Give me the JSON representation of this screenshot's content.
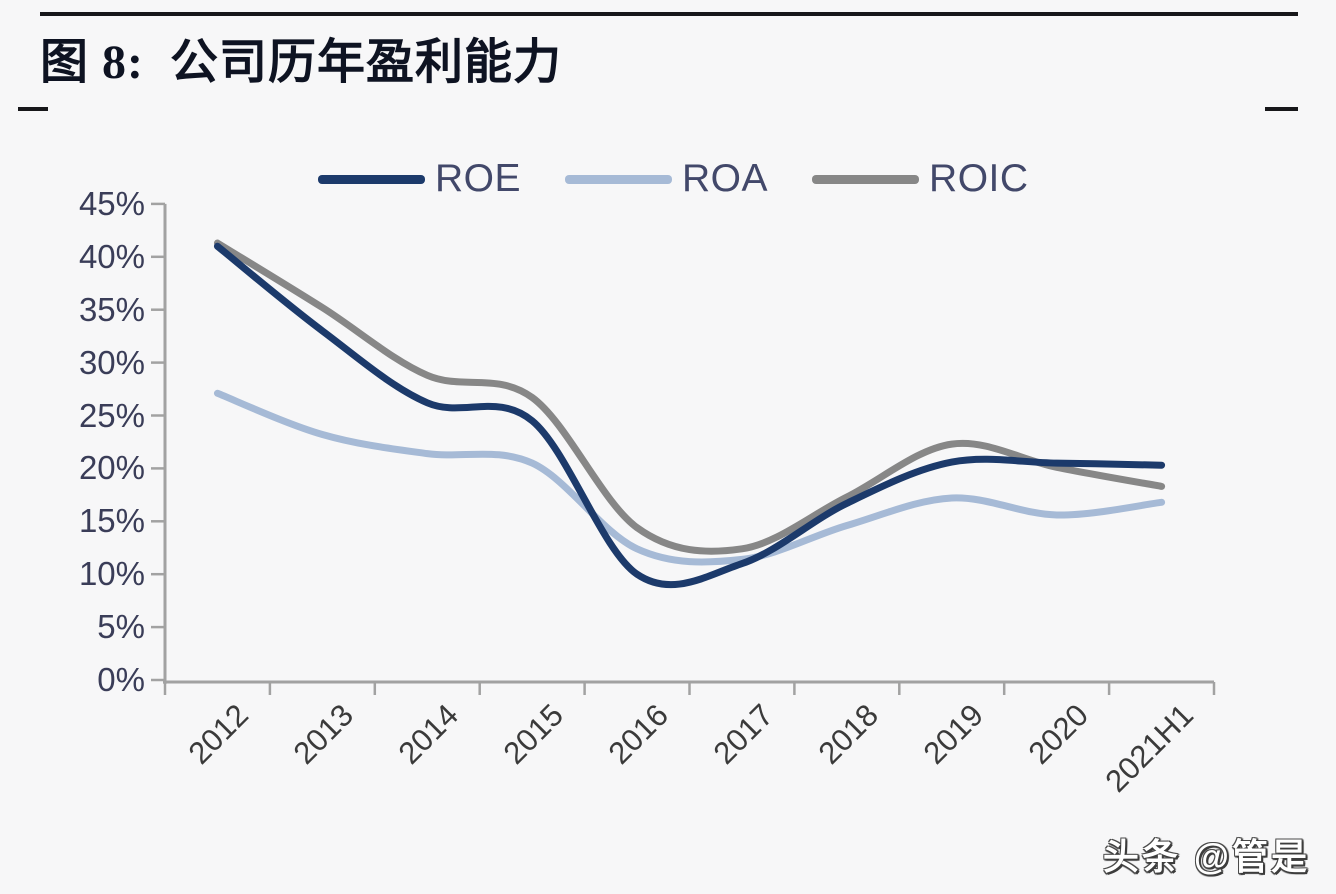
{
  "header": {
    "title": "图 8:  公司历年盈利能力"
  },
  "watermark": "头条 @管是",
  "chart_data": {
    "type": "line",
    "title": "公司历年盈利能力",
    "categories": [
      "2012",
      "2013",
      "2014",
      "2015",
      "2016",
      "2017",
      "2018",
      "2019",
      "2020",
      "2021H1"
    ],
    "series": [
      {
        "name": "ROE",
        "color": "#1c3a6b",
        "values": [
          41.0,
          33.0,
          26.2,
          24.5,
          10.0,
          11.0,
          16.7,
          20.6,
          20.5,
          20.3
        ]
      },
      {
        "name": "ROA",
        "color": "#a6bad6",
        "values": [
          27.1,
          23.2,
          21.4,
          20.5,
          12.4,
          11.4,
          14.6,
          17.2,
          15.6,
          16.8
        ]
      },
      {
        "name": "ROIC",
        "color": "#878787",
        "values": [
          41.3,
          35.2,
          28.8,
          26.7,
          14.4,
          12.4,
          17.3,
          22.3,
          20.1,
          18.3
        ]
      }
    ],
    "ylabel": "",
    "xlabel": "",
    "ylim": [
      0,
      45
    ],
    "y_tick_step": 5,
    "y_tick_labels": [
      "0%",
      "5%",
      "10%",
      "15%",
      "20%",
      "25%",
      "30%",
      "35%",
      "40%",
      "45%"
    ],
    "grid": false,
    "legend_position": "top",
    "line_smoothing": true,
    "axis_color": "#a2a2a2"
  }
}
